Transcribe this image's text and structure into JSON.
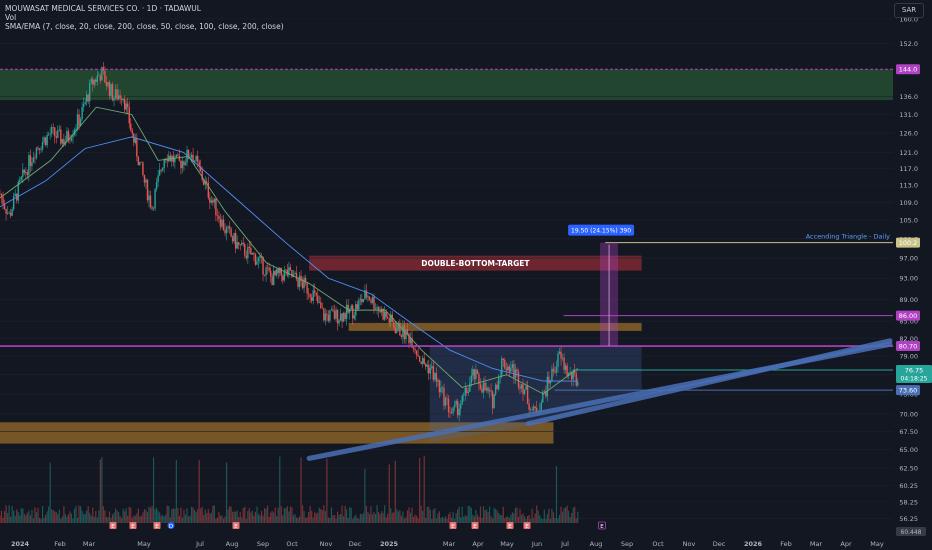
{
  "header": {
    "title": "MOUWASAT MEDICAL SERVICES CO. · 1D · TADAWUL",
    "volume_label": "Vol",
    "ma_label": "SMA/EMA (7, close, 20, close, 200, close, 50, close, 100, close, 200, close)",
    "currency": "SAR"
  },
  "colors": {
    "background": "#131722",
    "up": "#26a69a",
    "down": "#ef5350",
    "magenta": "#b041c2",
    "blue_band": "#4a6fb5",
    "orange_zone": "#c98a2a",
    "red_zone": "#b8323c",
    "green_zone": "#2e6b3a"
  },
  "chart_data": {
    "type": "candlestick",
    "title": "MOUWASAT MEDICAL SERVICES CO. · 1D · TADAWUL",
    "y_axis": {
      "ticks": [
        160.0,
        152.0,
        144.0,
        136.0,
        131.0,
        126.0,
        121.0,
        117.0,
        113.0,
        109.0,
        105.0,
        101.0,
        97.0,
        93.0,
        89.0,
        85.0,
        82.0,
        79.0,
        76.0,
        73.0,
        70.0,
        67.5,
        65.0,
        62.5,
        60.25,
        58.25,
        56.25
      ],
      "scale": "log",
      "range": [
        55.5,
        163
      ]
    },
    "x_axis": {
      "ticks": [
        "2024",
        "Feb",
        "Mar",
        "May",
        "Jul",
        "Aug",
        "Sep",
        "Oct",
        "Nov",
        "Dec",
        "2025",
        "Mar",
        "Apr",
        "May",
        "Jun",
        "Jul",
        "Aug",
        "Sep",
        "Oct",
        "Nov",
        "Dec",
        "2026",
        "Feb",
        "Mar",
        "Apr",
        "May"
      ],
      "range": [
        "2024-01-01",
        "2026-05-31"
      ]
    },
    "price_path": [
      [
        "2024-01-01",
        111
      ],
      [
        "2024-01-10",
        106
      ],
      [
        "2024-01-22",
        114
      ],
      [
        "2024-02-05",
        122
      ],
      [
        "2024-02-20",
        126
      ],
      [
        "2024-03-05",
        124
      ],
      [
        "2024-03-20",
        130
      ],
      [
        "2024-04-01",
        140
      ],
      [
        "2024-04-10",
        143
      ],
      [
        "2024-04-22",
        136
      ],
      [
        "2024-05-01",
        137
      ],
      [
        "2024-05-10",
        126
      ],
      [
        "2024-05-22",
        114
      ],
      [
        "2024-05-30",
        108
      ],
      [
        "2024-06-12",
        121
      ],
      [
        "2024-06-25",
        118
      ],
      [
        "2024-07-08",
        121
      ],
      [
        "2024-07-25",
        111
      ],
      [
        "2024-08-10",
        103
      ],
      [
        "2024-08-25",
        99
      ],
      [
        "2024-09-10",
        97
      ],
      [
        "2024-09-25",
        93
      ],
      [
        "2024-10-10",
        94
      ],
      [
        "2024-10-25",
        92
      ],
      [
        "2024-11-05",
        90
      ],
      [
        "2024-11-15",
        86
      ],
      [
        "2024-12-01",
        86
      ],
      [
        "2024-12-15",
        87
      ],
      [
        "2024-12-28",
        90
      ],
      [
        "2025-01-10",
        87
      ],
      [
        "2025-01-25",
        84
      ],
      [
        "2025-02-10",
        82
      ],
      [
        "2025-02-20",
        78
      ],
      [
        "2025-03-01",
        77
      ],
      [
        "2025-03-12",
        73
      ],
      [
        "2025-03-22",
        70
      ],
      [
        "2025-04-02",
        72
      ],
      [
        "2025-04-12",
        76
      ],
      [
        "2025-04-22",
        74
      ],
      [
        "2025-05-01",
        72
      ],
      [
        "2025-05-10",
        78
      ],
      [
        "2025-05-20",
        77
      ],
      [
        "2025-06-01",
        74
      ],
      [
        "2025-06-10",
        70
      ],
      [
        "2025-06-18",
        72
      ],
      [
        "2025-06-28",
        76
      ],
      [
        "2025-07-06",
        79
      ],
      [
        "2025-07-15",
        76
      ],
      [
        "2025-07-24",
        75
      ]
    ],
    "moving_averages": [
      {
        "color": "#4e8ff5",
        "points": [
          [
            "2024-01-01",
            108
          ],
          [
            "2024-02-15",
            114
          ],
          [
            "2024-03-25",
            122
          ],
          [
            "2024-05-10",
            125
          ],
          [
            "2024-06-30",
            121
          ],
          [
            "2024-08-20",
            110
          ],
          [
            "2024-10-10",
            100
          ],
          [
            "2024-11-20",
            93
          ],
          [
            "2025-01-01",
            90
          ],
          [
            "2025-02-15",
            84
          ],
          [
            "2025-03-20",
            80
          ],
          [
            "2025-05-01",
            77
          ],
          [
            "2025-06-20",
            75
          ],
          [
            "2025-07-24",
            75
          ]
        ]
      },
      {
        "color": "#6da86d",
        "points": [
          [
            "2024-01-01",
            110
          ],
          [
            "2024-02-20",
            119
          ],
          [
            "2024-04-05",
            133
          ],
          [
            "2024-05-10",
            131
          ],
          [
            "2024-06-05",
            119
          ],
          [
            "2024-07-05",
            120
          ],
          [
            "2024-08-10",
            107
          ],
          [
            "2024-09-20",
            96
          ],
          [
            "2024-11-01",
            92
          ],
          [
            "2024-12-10",
            87
          ],
          [
            "2025-01-15",
            87
          ],
          [
            "2025-02-20",
            80
          ],
          [
            "2025-04-01",
            74
          ],
          [
            "2025-05-15",
            76
          ],
          [
            "2025-06-20",
            73
          ],
          [
            "2025-07-24",
            77
          ]
        ]
      }
    ],
    "horizontal_levels": [
      {
        "value": 144.0,
        "label": "144.0",
        "color": "#b041c2"
      },
      {
        "value": 100.2,
        "label": "100.2",
        "color": "#c9c38a"
      },
      {
        "value": 86.0,
        "label": "86.00",
        "color": "#b041c2"
      },
      {
        "value": 80.7,
        "label": "80.70",
        "color": "#b041c2"
      },
      {
        "value": 76.75,
        "label": "76.75",
        "color": "#26a69a"
      },
      {
        "value": 73.6,
        "label": "73.60",
        "color": "#4a6fb5"
      }
    ],
    "price_badge": {
      "value": "76.75",
      "countdown": "04:18:25"
    },
    "last_label": "60.448",
    "zones": [
      {
        "from": "2024-01-01",
        "to": "2026-05-31",
        "low": 135,
        "high": 144,
        "color": "#2e6b3a"
      },
      {
        "from": "2024-11-01",
        "to": "2025-09-25",
        "low": 94.5,
        "high": 97.5,
        "color": "#b8323c",
        "label": "DOUBLE-BOTTOM-TARGET"
      },
      {
        "from": "2024-12-10",
        "to": "2025-09-25",
        "low": 83.3,
        "high": 84.7,
        "color": "#c98a2a"
      },
      {
        "from": "2024-01-01",
        "to": "2025-06-30",
        "low": 65.8,
        "high": 68.8,
        "color": "#c98a2a"
      }
    ],
    "measure": {
      "from": "2025-08-15",
      "base": 80.7,
      "target": 100.2,
      "label": "19.50 (24.15%) 390"
    },
    "annotation": {
      "text": "Accending Triangle - Daily"
    },
    "event_markers": [
      "E",
      "E",
      "E",
      "D",
      "E",
      "E",
      "E",
      "E",
      "E",
      "E"
    ],
    "months_label_note": ""
  }
}
